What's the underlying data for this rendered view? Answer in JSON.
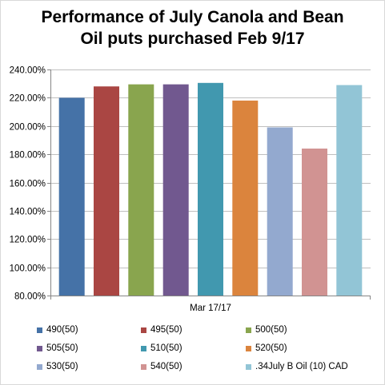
{
  "chart_data": {
    "type": "bar",
    "title_lines": [
      "Performance of July Canola and Bean",
      "Oil puts purchased Feb 9/17"
    ],
    "categories": [
      "Mar 17/17"
    ],
    "ylim": [
      80,
      240
    ],
    "y_ticks": [
      80,
      100,
      120,
      140,
      160,
      180,
      200,
      220,
      240
    ],
    "y_tick_labels": [
      "80.00%",
      "100.00%",
      "120.00%",
      "140.00%",
      "160.00%",
      "180.00%",
      "200.00%",
      "220.00%",
      "240.00%"
    ],
    "grid": true,
    "legend_position": "bottom",
    "series": [
      {
        "name": "490(50)",
        "values": [
          220
        ],
        "color": "#4572a7"
      },
      {
        "name": "495(50)",
        "values": [
          228
        ],
        "color": "#aa4643"
      },
      {
        "name": "500(50)",
        "values": [
          229.5
        ],
        "color": "#89a54e"
      },
      {
        "name": "505(50)",
        "values": [
          229.5
        ],
        "color": "#71588f"
      },
      {
        "name": "510(50)",
        "values": [
          230.5
        ],
        "color": "#4198af"
      },
      {
        "name": "520(50)",
        "values": [
          218
        ],
        "color": "#db843d"
      },
      {
        "name": "530(50)",
        "values": [
          199
        ],
        "color": "#93a9cf"
      },
      {
        "name": "540(50)",
        "values": [
          184
        ],
        "color": "#d19392"
      },
      {
        "name": ".34July B Oil (10) CAD",
        "values": [
          229
        ],
        "color": "#92c5d6"
      }
    ]
  }
}
